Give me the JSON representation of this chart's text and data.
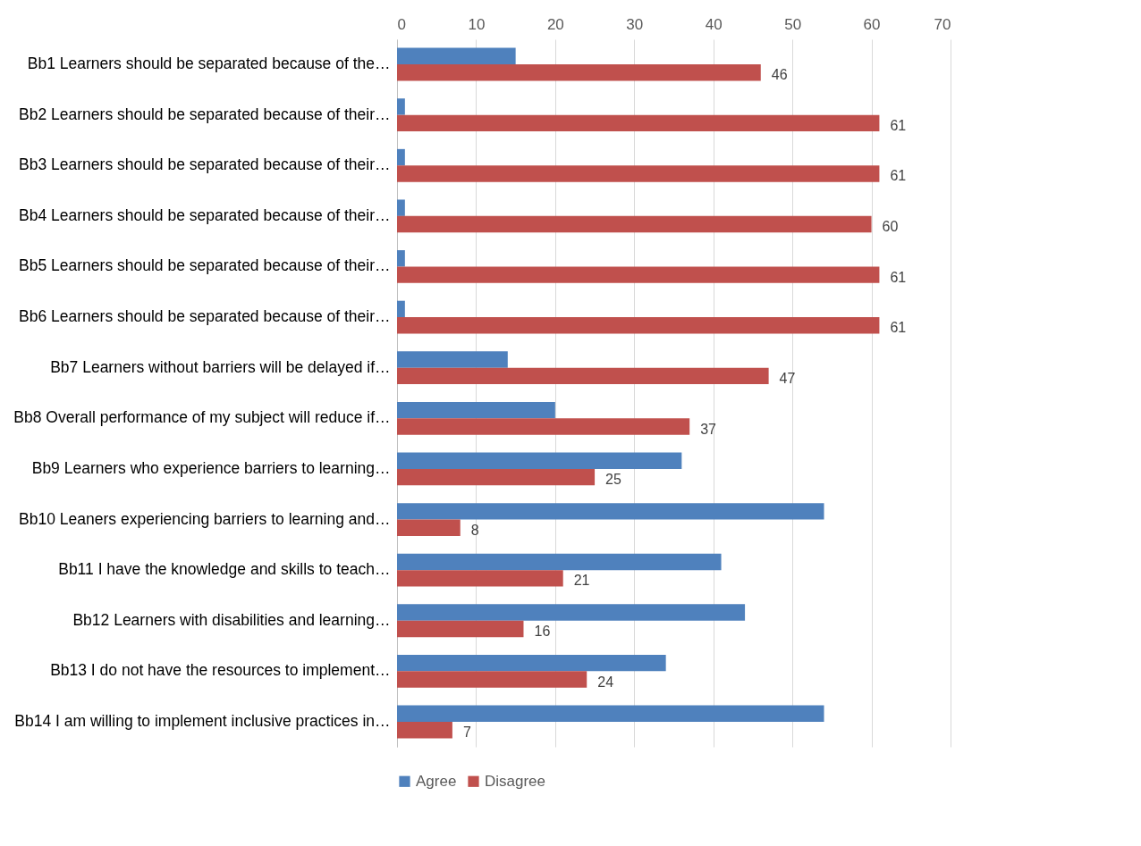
{
  "chart_data": {
    "type": "bar",
    "orientation": "horizontal",
    "categories": [
      "Bb1 Learners should be separated because of the…",
      "Bb2 Learners should be separated because of their…",
      "Bb3 Learners should be separated because of their…",
      "Bb4 Learners should be separated because of their…",
      "Bb5 Learners should be separated because of their…",
      "Bb6 Learners should be separated because of their…",
      "Bb7 Learners without barriers will be delayed if…",
      "Bb8 Overall performance of my subject will reduce if…",
      "Bb9 Learners who experience barriers to learning…",
      "Bb10 Leaners experiencing barriers to learning and…",
      "Bb11 I have the knowledge and skills to teach…",
      "Bb12 Learners with disabilities and learning…",
      "Bb13 I do not have the resources to implement…",
      "Bb14 I am willing to implement inclusive practices in…"
    ],
    "series": [
      {
        "name": "Agree",
        "color": "#4f81bd",
        "values": [
          15,
          1,
          1,
          1,
          1,
          1,
          14,
          20,
          36,
          54,
          41,
          44,
          34,
          54
        ]
      },
      {
        "name": "Disagree",
        "color": "#c0504d",
        "values": [
          46,
          61,
          61,
          60,
          61,
          61,
          47,
          37,
          25,
          8,
          21,
          16,
          24,
          7
        ],
        "value_labels": [
          "46",
          "61",
          "61",
          "60",
          "61",
          "61",
          "47",
          "37",
          "25",
          "8",
          "21",
          "16",
          "24",
          "7"
        ]
      }
    ],
    "xlim": [
      0,
      70
    ],
    "xticks": [
      0,
      10,
      20,
      30,
      40,
      50,
      60,
      70
    ],
    "grid": "x",
    "legend": "bottom"
  }
}
